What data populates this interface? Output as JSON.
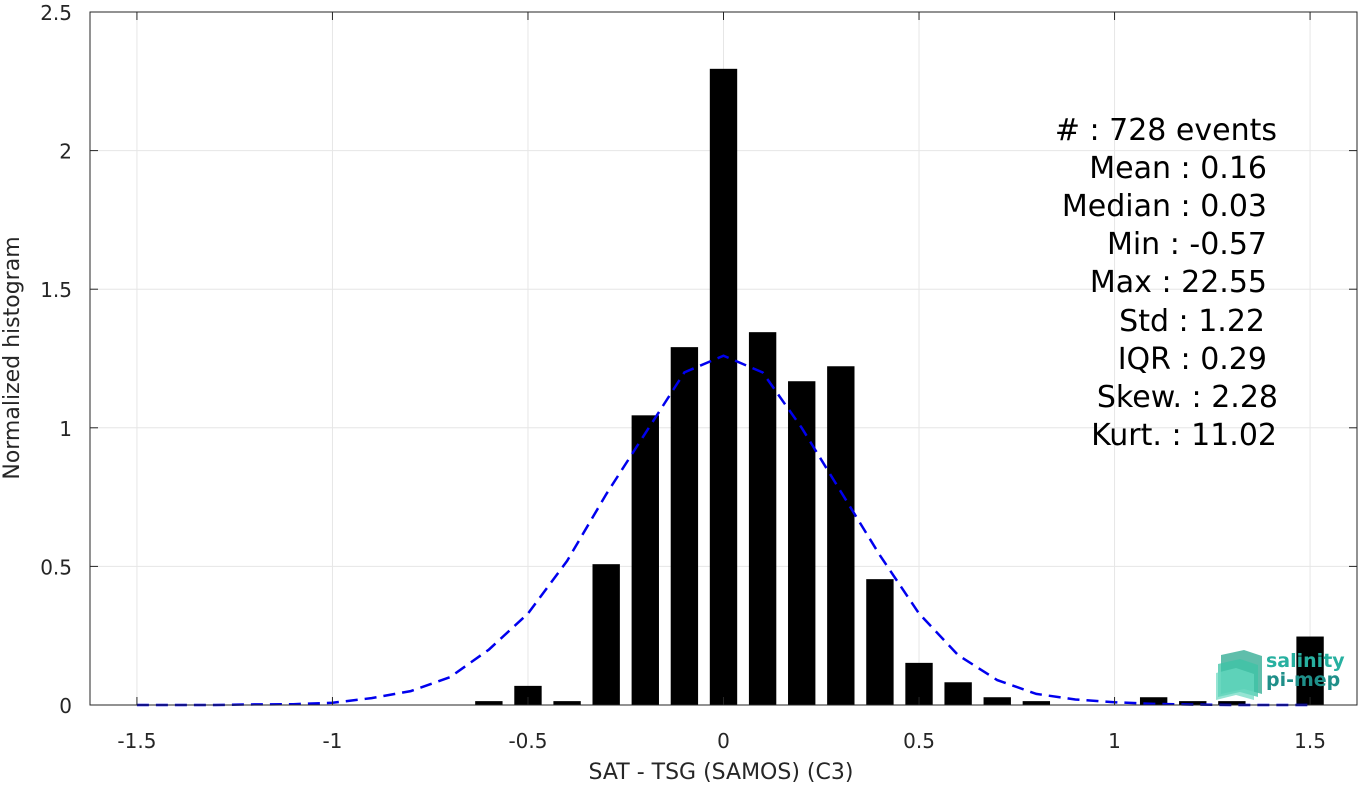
{
  "chart_data": {
    "type": "bar",
    "xlabel": "SAT - TSG (SAMOS) (C3)",
    "ylabel": "Normalized histogram",
    "xlim": [
      -1.62,
      1.62
    ],
    "ylim": [
      0,
      2.5
    ],
    "x_ticks": [
      -1.5,
      -1,
      -0.5,
      0,
      0.5,
      1,
      1.5
    ],
    "x_tick_labels": [
      "-1.5",
      "-1",
      "-0.5",
      "0",
      "0.5",
      "1",
      "1.5"
    ],
    "y_ticks": [
      0,
      0.5,
      1,
      1.5,
      2,
      2.5
    ],
    "y_tick_labels": [
      "0",
      "0.5",
      "1",
      "1.5",
      "2",
      "2.5"
    ],
    "grid": true,
    "bar_width": 0.07,
    "bins": {
      "centers": [
        -0.6,
        -0.5,
        -0.4,
        -0.3,
        -0.2,
        -0.1,
        0.0,
        0.1,
        0.2,
        0.3,
        0.4,
        0.5,
        0.6,
        0.7,
        0.8,
        0.9,
        1.0,
        1.1,
        1.2,
        1.3,
        1.4,
        1.5
      ],
      "values": [
        0.014,
        0.069,
        0.014,
        0.508,
        1.045,
        1.291,
        2.295,
        1.345,
        1.168,
        1.222,
        0.454,
        0.152,
        0.082,
        0.028,
        0.014,
        0,
        0,
        0.028,
        0.014,
        0.014,
        0,
        0.247
      ],
      "color": "#000000"
    },
    "fit_curve": {
      "style": "dashed",
      "color": "#0000ee",
      "x": [
        -1.5,
        -1.4,
        -1.3,
        -1.2,
        -1.1,
        -1.0,
        -0.9,
        -0.8,
        -0.7,
        -0.6,
        -0.5,
        -0.4,
        -0.3,
        -0.2,
        -0.1,
        0.0,
        0.1,
        0.2,
        0.3,
        0.4,
        0.5,
        0.6,
        0.7,
        0.8,
        0.9,
        1.0,
        1.1,
        1.2,
        1.3,
        1.4,
        1.5
      ],
      "y": [
        0.0,
        0.0,
        0.0,
        0.002,
        0.003,
        0.008,
        0.025,
        0.05,
        0.1,
        0.2,
        0.33,
        0.52,
        0.76,
        0.98,
        1.2,
        1.26,
        1.2,
        1.0,
        0.77,
        0.54,
        0.33,
        0.18,
        0.09,
        0.04,
        0.02,
        0.01,
        0.004,
        0.0015,
        0.0,
        0.0,
        0.0
      ]
    },
    "annotations": [
      "#  : 728 events",
      "Mean : 0.16",
      "Median : 0.03",
      "Min : -0.57",
      "Max : 22.55",
      "Std : 1.22",
      "IQR : 0.29",
      "Skew. : 2.28",
      "Kurt. : 11.02"
    ]
  },
  "logo": {
    "line1": "salinity",
    "line2": "pi-mep",
    "color1": "#27b0a0",
    "color2": "#1f8f89"
  }
}
